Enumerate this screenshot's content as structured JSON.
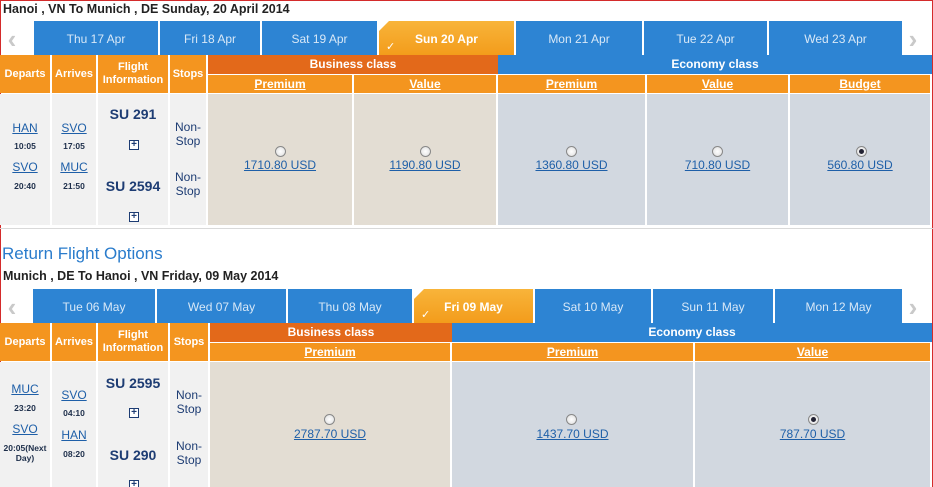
{
  "outbound": {
    "route_title": "Hanoi , VN To Munich , DE Sunday, 20 April 2014",
    "dates": [
      {
        "label": "Thu 17 Apr",
        "selected": false
      },
      {
        "label": "Fri 18 Apr",
        "selected": false
      },
      {
        "label": "Sat 19 Apr",
        "selected": false
      },
      {
        "label": "Sun 20 Apr",
        "selected": true
      },
      {
        "label": "Mon 21 Apr",
        "selected": false
      },
      {
        "label": "Tue 22 Apr",
        "selected": false
      },
      {
        "label": "Wed 23 Apr",
        "selected": false
      }
    ],
    "headers": {
      "departs": "Departs",
      "arrives": "Arrives",
      "flight_info": "Flight Information",
      "stops": "Stops"
    },
    "classes": {
      "business": "Business class",
      "economy": "Economy class"
    },
    "fare_types": [
      "Premium",
      "Value",
      "Premium",
      "Value",
      "Budget"
    ],
    "legs": [
      {
        "depart_code": "HAN",
        "depart_time": "10:05",
        "arrive_code": "SVO",
        "arrive_time": "17:05",
        "flight": "SU 291",
        "stops": "Non-Stop"
      },
      {
        "depart_code": "SVO",
        "depart_time": "20:40",
        "arrive_code": "MUC",
        "arrive_time": "21:50",
        "flight": "SU 2594",
        "stops": "Non-Stop"
      }
    ],
    "fares": [
      {
        "price": "1710.80 USD",
        "selected": false
      },
      {
        "price": "1190.80 USD",
        "selected": false
      },
      {
        "price": "1360.80 USD",
        "selected": false
      },
      {
        "price": "710.80 USD",
        "selected": false
      },
      {
        "price": "560.80 USD",
        "selected": true
      }
    ]
  },
  "return_heading": "Return Flight Options",
  "inbound": {
    "route_title": "Munich , DE To Hanoi , VN Friday, 09 May 2014",
    "dates": [
      {
        "label": "Tue 06 May",
        "selected": false
      },
      {
        "label": "Wed 07 May",
        "selected": false
      },
      {
        "label": "Thu 08 May",
        "selected": false
      },
      {
        "label": "Fri 09 May",
        "selected": true
      },
      {
        "label": "Sat 10 May",
        "selected": false
      },
      {
        "label": "Sun 11 May",
        "selected": false
      },
      {
        "label": "Mon 12 May",
        "selected": false
      }
    ],
    "headers": {
      "departs": "Departs",
      "arrives": "Arrives",
      "flight_info": "Flight Information",
      "stops": "Stops"
    },
    "classes": {
      "business": "Business class",
      "economy": "Economy class"
    },
    "fare_types": [
      "Premium",
      "Premium",
      "Value"
    ],
    "legs": [
      {
        "depart_code": "MUC",
        "depart_time": "23:20",
        "arrive_code": "SVO",
        "arrive_time": "04:10",
        "flight": "SU 2595",
        "stops": "Non-Stop"
      },
      {
        "depart_code": "SVO",
        "depart_time": "20:05(Next Day)",
        "arrive_code": "HAN",
        "arrive_time": "08:20",
        "flight": "SU 290",
        "stops": "Non-Stop"
      }
    ],
    "fares": [
      {
        "price": "2787.70 USD",
        "selected": false
      },
      {
        "price": "1437.70 USD",
        "selected": false
      },
      {
        "price": "787.70 USD",
        "selected": true
      }
    ]
  },
  "icons": {
    "prev": "chevron-left-icon",
    "next": "chevron-right-icon",
    "expand": "plus-box-icon",
    "selected_check": "check-icon"
  }
}
